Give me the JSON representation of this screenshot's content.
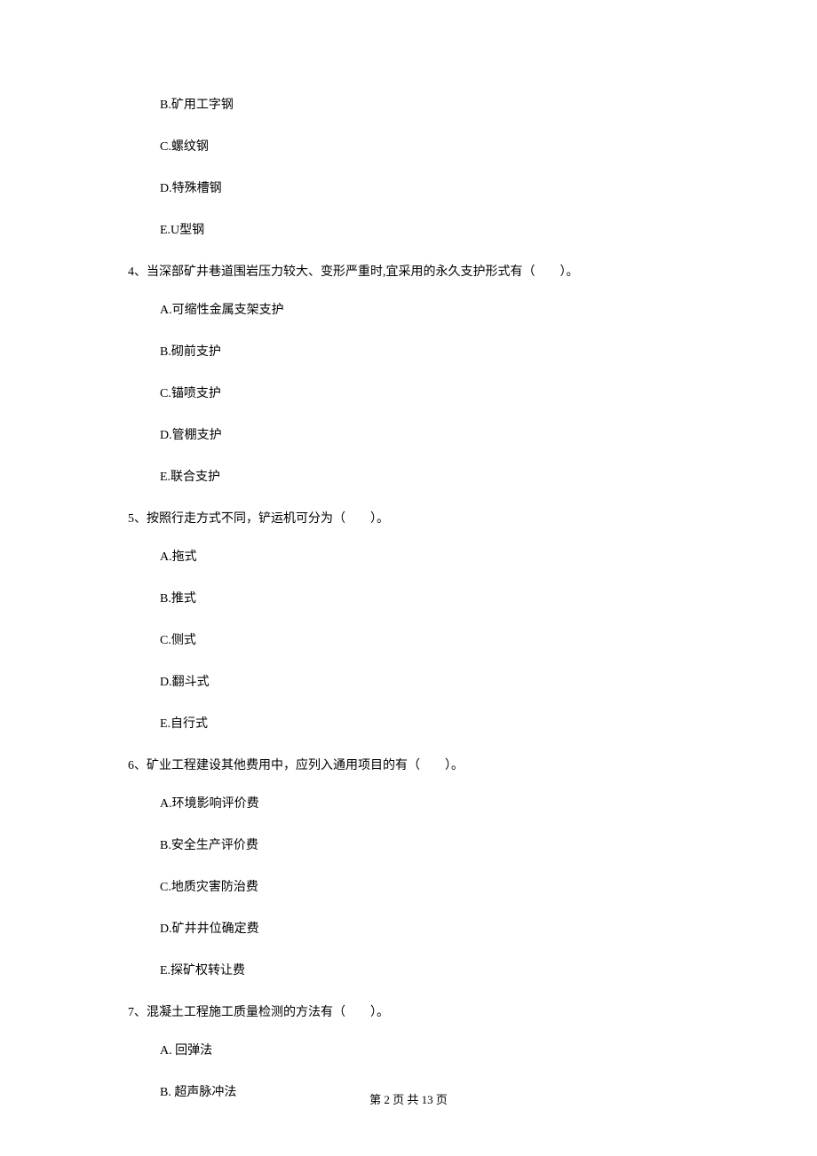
{
  "questions": [
    {
      "number": "",
      "text": "",
      "options": [
        "B.矿用工字钢",
        "C.螺纹钢",
        "D.特殊槽钢",
        "E.U型钢"
      ]
    },
    {
      "number": "4、",
      "text": "当深部矿井巷道围岩压力较大、变形严重时,宜采用的永久支护形式有（　　）。",
      "options": [
        "A.可缩性金属支架支护",
        "B.砌前支护",
        "C.锚喷支护",
        "D.管棚支护",
        "E.联合支护"
      ]
    },
    {
      "number": "5、",
      "text": "按照行走方式不同，铲运机可分为（　　）。",
      "options": [
        "A.拖式",
        "B.推式",
        "C.侧式",
        "D.翻斗式",
        "E.自行式"
      ]
    },
    {
      "number": "6、",
      "text": "矿业工程建设其他费用中，应列入通用项目的有（　　）。",
      "options": [
        "A.环境影响评价费",
        "B.安全生产评价费",
        "C.地质灾害防治费",
        "D.矿井井位确定费",
        "E.探矿权转让费"
      ]
    },
    {
      "number": "7、",
      "text": "混凝土工程施工质量检测的方法有（　　）。",
      "options": [
        "A. 回弹法",
        "B. 超声脉冲法"
      ]
    }
  ],
  "footer": {
    "text": "第 2 页 共 13 页"
  }
}
